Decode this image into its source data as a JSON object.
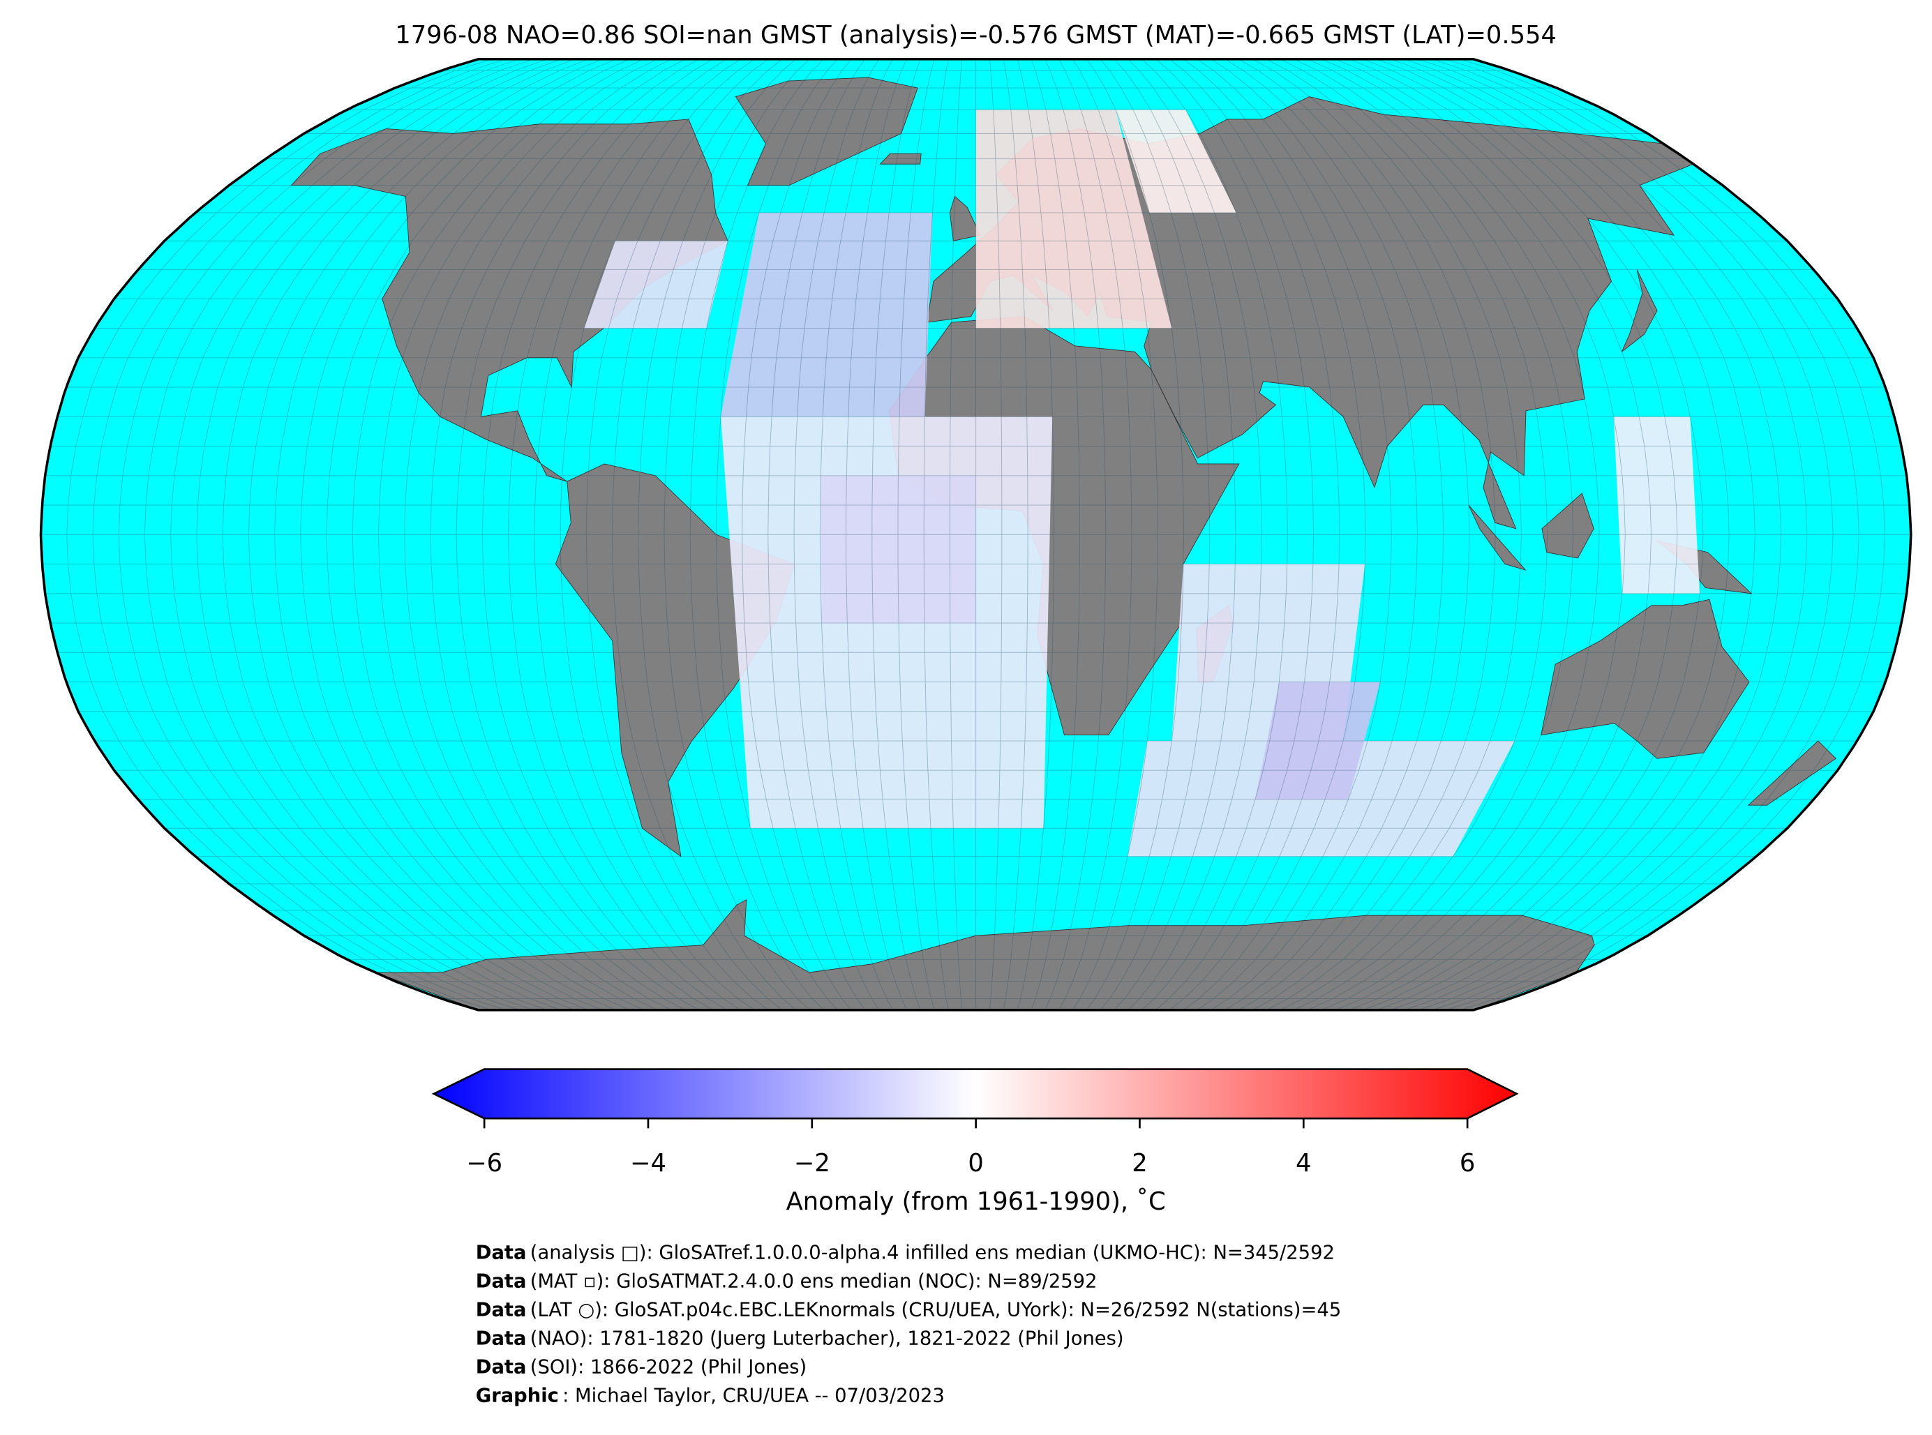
{
  "title": "1796-08 NAO=0.86 SOI=nan GMST (analysis)=-0.576 GMST (MAT)=-0.665 GMST (LAT)=0.554",
  "colorbar": {
    "label": "Anomaly (from 1961-1990), ˚C",
    "lim": [
      -6,
      6
    ],
    "ticks": [
      {
        "value": -6,
        "label": "−6"
      },
      {
        "value": -4,
        "label": "−4"
      },
      {
        "value": -2,
        "label": "−2"
      },
      0,
      2,
      4,
      6
    ]
  },
  "credits": [
    {
      "label": "Data",
      "text": "(analysis □): GloSATref.1.0.0.0-alpha.4 infilled ens median (UKMO-HC): N=345/2592"
    },
    {
      "label": "Data",
      "text": "(MAT ▫): GloSATMAT.2.4.0.0 ens median (NOC): N=89/2592"
    },
    {
      "label": "Data",
      "text": "(LAT ○): GloSAT.p04c.EBC.LEKnormals (CRU/UEA, UYork): N=26/2592 N(stations)=45"
    },
    {
      "label": "Data",
      "text": "(NAO): 1781-1820 (Juerg Luterbacher), 1821-2022 (Phil Jones)"
    },
    {
      "label": "Data",
      "text": "(SOI): 1866-2022 (Phil Jones)"
    },
    {
      "label": "Graphic",
      "text": ": Michael Taylor, CRU/UEA -- 07/03/2023"
    }
  ]
}
